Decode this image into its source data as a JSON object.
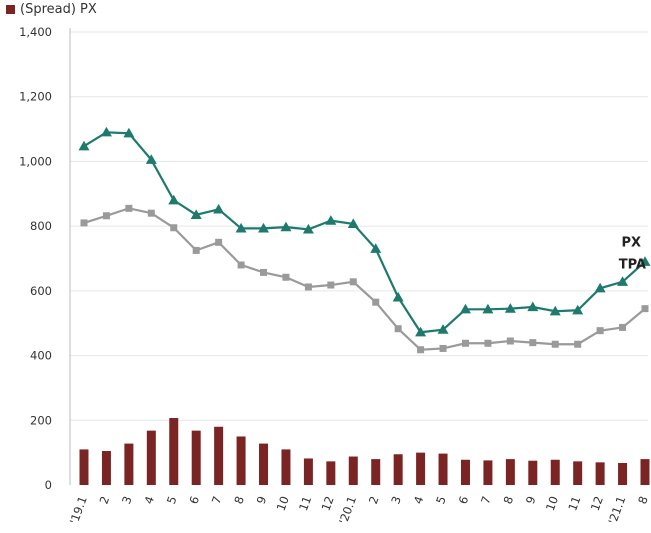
{
  "chart_data": {
    "type": "bar",
    "legend": {
      "label": "(Spread) PX",
      "color": "#7b2424",
      "position": "top-left"
    },
    "categories": [
      "'19.1",
      "2",
      "3",
      "4",
      "5",
      "6",
      "7",
      "8",
      "9",
      "10",
      "11",
      "12",
      "'20.1",
      "2",
      "3",
      "4",
      "5",
      "6",
      "7",
      "8",
      "9",
      "10",
      "11",
      "12",
      "'21.1",
      "8"
    ],
    "ylim": [
      0,
      1400
    ],
    "yticks": [
      0,
      200,
      400,
      600,
      800,
      1000,
      1200,
      1400
    ],
    "ytick_labels": [
      "0",
      "200",
      "400",
      "600",
      "800",
      "1,000",
      "1,200",
      "1,400"
    ],
    "grid": true,
    "series": [
      {
        "name": "(Spread) PX",
        "type": "bar",
        "color": "#7b2424",
        "values": [
          110,
          105,
          128,
          168,
          207,
          168,
          180,
          150,
          128,
          110,
          82,
          73,
          88,
          80,
          95,
          100,
          97,
          78,
          76,
          80,
          75,
          78,
          73,
          70,
          68,
          80
        ]
      },
      {
        "name": "PX",
        "type": "line",
        "marker": "triangle",
        "color": "#1f7a6e",
        "values": [
          1047,
          1090,
          1087,
          1005,
          880,
          835,
          852,
          793,
          793,
          797,
          790,
          817,
          807,
          730,
          580,
          472,
          480,
          543,
          543,
          545,
          550,
          537,
          540,
          608,
          628,
          690
        ]
      },
      {
        "name": "TPA",
        "type": "line",
        "marker": "square",
        "color": "#9a9a9a",
        "values": [
          810,
          832,
          855,
          840,
          795,
          725,
          750,
          680,
          657,
          642,
          612,
          618,
          628,
          565,
          483,
          418,
          422,
          438,
          438,
          445,
          440,
          435,
          435,
          477,
          487,
          545
        ]
      }
    ],
    "annotations": [
      {
        "text": "PX",
        "series": "PX"
      },
      {
        "text": "TPA",
        "series": "TPA"
      }
    ]
  }
}
